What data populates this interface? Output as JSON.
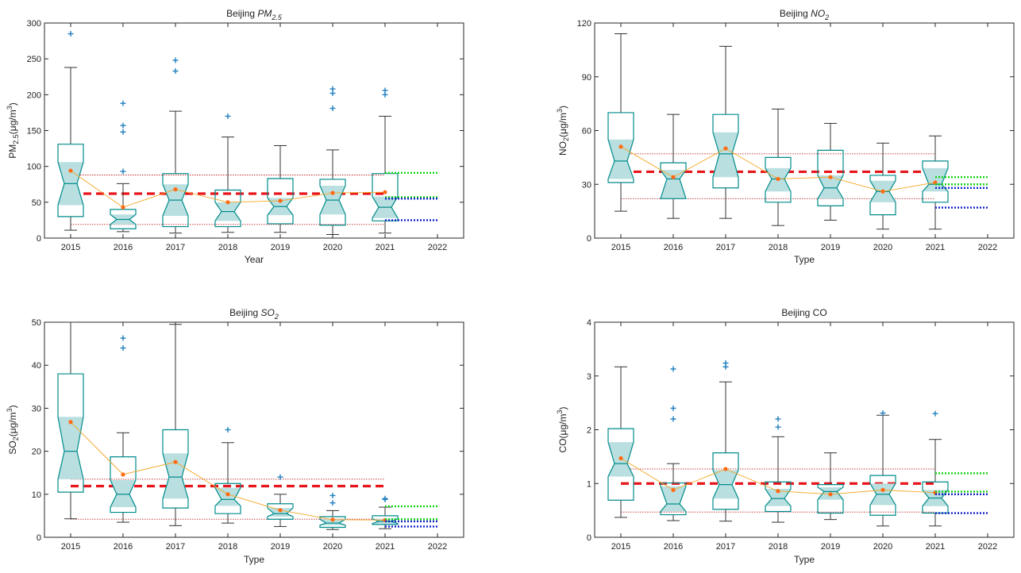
{
  "chart_data": [
    {
      "type": "box",
      "title_main": "Beijing ",
      "title_sub": "PM",
      "title_subscript": "2.5",
      "title_italic": true,
      "ylabel_main": "PM",
      "ylabel_sub": "2.5",
      "ylabel_unit": "(μg/m",
      "ylabel_sup": "3",
      "ylabel_close": ")",
      "xlabel": "Year",
      "ylim": [
        0,
        300
      ],
      "yticks": [
        0,
        50,
        100,
        150,
        200,
        250,
        300
      ],
      "yticklabels": [
        "0",
        "50",
        "100",
        "150",
        "200",
        "250",
        "300"
      ],
      "xlim": [
        2014.5,
        2022.5
      ],
      "xticks": [
        2015,
        2016,
        2017,
        2018,
        2019,
        2020,
        2021,
        2022
      ],
      "xticklabels": [
        "2015",
        "2016",
        "2017",
        "2018",
        "2019",
        "2020",
        "2021",
        "2022"
      ],
      "boxes": [
        {
          "year": 2015,
          "whisker_low": 11,
          "q1": 30,
          "median": 76,
          "q3": 131,
          "whisker_high": 238,
          "notch_low": 46,
          "notch_high": 106,
          "mean": 94,
          "outliers": [
            285
          ]
        },
        {
          "year": 2016,
          "whisker_low": 9,
          "q1": 13,
          "median": 26,
          "q3": 40,
          "whisker_high": 76,
          "notch_low": 19,
          "notch_high": 33,
          "mean": 43,
          "outliers": [
            93,
            148,
            157,
            188
          ]
        },
        {
          "year": 2017,
          "whisker_low": 7,
          "q1": 16,
          "median": 53,
          "q3": 90,
          "whisker_high": 177,
          "notch_low": 31,
          "notch_high": 75,
          "mean": 68,
          "outliers": [
            233,
            248
          ]
        },
        {
          "year": 2018,
          "whisker_low": 8,
          "q1": 16,
          "median": 37,
          "q3": 67,
          "whisker_high": 141,
          "notch_low": 24,
          "notch_high": 50,
          "mean": 50,
          "outliers": [
            170
          ]
        },
        {
          "year": 2019,
          "whisker_low": 8,
          "q1": 20,
          "median": 44,
          "q3": 83,
          "whisker_high": 129,
          "notch_low": 32,
          "notch_high": 56,
          "mean": 52,
          "outliers": []
        },
        {
          "year": 2020,
          "whisker_low": 5,
          "q1": 18,
          "median": 53,
          "q3": 82,
          "whisker_high": 123,
          "notch_low": 33,
          "notch_high": 73,
          "mean": 63,
          "outliers": [
            181,
            202,
            208
          ]
        },
        {
          "year": 2021,
          "whisker_low": 7,
          "q1": 24,
          "median": 43,
          "q3": 90,
          "whisker_high": 170,
          "notch_low": 28,
          "notch_high": 58,
          "mean": 64,
          "outliers": [
            200,
            206
          ]
        }
      ],
      "hlines": [
        {
          "name": "overall-mean",
          "y": 62,
          "x_from": 2015.0,
          "x_to": 2021.0,
          "color": "#e8141b",
          "style": "dash-thick"
        },
        {
          "name": "upper-band",
          "y": 88,
          "x_from": 2015.0,
          "x_to": 2021.0,
          "color": "#c0282b",
          "style": "dot-thin"
        },
        {
          "name": "lower-band",
          "y": 19,
          "x_from": 2015.0,
          "x_to": 2021.0,
          "color": "#c0282b",
          "style": "dot-thin"
        }
      ],
      "projections": [
        {
          "name": "green-upper",
          "y": 91,
          "color": "#18d418"
        },
        {
          "name": "green-lower",
          "y": 57,
          "color": "#18d418"
        },
        {
          "name": "blue-upper",
          "y": 55,
          "color": "#1220c8"
        },
        {
          "name": "blue-lower",
          "y": 25,
          "color": "#1220c8"
        }
      ]
    },
    {
      "type": "box",
      "title_main": "Beijing ",
      "title_sub": "NO",
      "title_subscript": "2",
      "title_italic": true,
      "ylabel_main": "NO",
      "ylabel_sub": "2",
      "ylabel_unit": "(μg/m",
      "ylabel_sup": "3",
      "ylabel_close": ")",
      "xlabel": "Type",
      "ylim": [
        0,
        120
      ],
      "yticks": [
        0,
        30,
        60,
        90,
        120
      ],
      "yticklabels": [
        "0",
        "30",
        "60",
        "90",
        "120"
      ],
      "xlim": [
        2014.5,
        2022.5
      ],
      "xticks": [
        2015,
        2016,
        2017,
        2018,
        2019,
        2020,
        2021,
        2022
      ],
      "xticklabels": [
        "2015",
        "2016",
        "2017",
        "2018",
        "2019",
        "2020",
        "2021",
        "2022"
      ],
      "boxes": [
        {
          "year": 2015,
          "whisker_low": 15,
          "q1": 31,
          "median": 43,
          "q3": 70,
          "whisker_high": 114,
          "notch_low": 33,
          "notch_high": 55,
          "mean": 51,
          "outliers": []
        },
        {
          "year": 2016,
          "whisker_low": 11,
          "q1": 22,
          "median": 33,
          "q3": 42,
          "whisker_high": 69,
          "notch_low": 22,
          "notch_high": 38,
          "mean": 34,
          "outliers": []
        },
        {
          "year": 2017,
          "whisker_low": 11,
          "q1": 28,
          "median": 47,
          "q3": 69,
          "whisker_high": 107,
          "notch_low": 34,
          "notch_high": 59,
          "mean": 50,
          "outliers": []
        },
        {
          "year": 2018,
          "whisker_low": 7,
          "q1": 20,
          "median": 33,
          "q3": 45,
          "whisker_high": 72,
          "notch_low": 26,
          "notch_high": 39,
          "mean": 33,
          "outliers": []
        },
        {
          "year": 2019,
          "whisker_low": 10,
          "q1": 18,
          "median": 28,
          "q3": 49,
          "whisker_high": 64,
          "notch_low": 22,
          "notch_high": 35,
          "mean": 34,
          "outliers": []
        },
        {
          "year": 2020,
          "whisker_low": 5,
          "q1": 13,
          "median": 26,
          "q3": 35,
          "whisker_high": 53,
          "notch_low": 20,
          "notch_high": 32,
          "mean": 26,
          "outliers": []
        },
        {
          "year": 2021,
          "whisker_low": 5,
          "q1": 20,
          "median": 30,
          "q3": 43,
          "whisker_high": 57,
          "notch_low": 26,
          "notch_high": 39,
          "mean": 31,
          "outliers": []
        }
      ],
      "hlines": [
        {
          "name": "overall-mean",
          "y": 37,
          "x_from": 2015.0,
          "x_to": 2021.0,
          "color": "#e8141b",
          "style": "dash-thick"
        },
        {
          "name": "upper-band",
          "y": 47,
          "x_from": 2015.0,
          "x_to": 2021.0,
          "color": "#c0282b",
          "style": "dot-thin"
        },
        {
          "name": "lower-band",
          "y": 22,
          "x_from": 2015.0,
          "x_to": 2021.0,
          "color": "#c0282b",
          "style": "dot-thin"
        }
      ],
      "projections": [
        {
          "name": "green-upper",
          "y": 34,
          "color": "#18d418"
        },
        {
          "name": "green-lower",
          "y": 30,
          "color": "#18d418"
        },
        {
          "name": "blue-upper",
          "y": 28,
          "color": "#1220c8"
        },
        {
          "name": "blue-lower",
          "y": 17,
          "color": "#1220c8"
        }
      ]
    },
    {
      "type": "box",
      "title_main": "Beijing ",
      "title_sub": "SO",
      "title_subscript": "2",
      "title_italic": true,
      "ylabel_main": "SO",
      "ylabel_sub": "2",
      "ylabel_unit": "(μg/m",
      "ylabel_sup": "3",
      "ylabel_close": ")",
      "xlabel": "Type",
      "ylim": [
        0,
        50
      ],
      "yticks": [
        0,
        10,
        20,
        30,
        40,
        50
      ],
      "yticklabels": [
        "0",
        "10",
        "20",
        "30",
        "40",
        "50"
      ],
      "xlim": [
        2014.5,
        2022.5
      ],
      "xticks": [
        2015,
        2016,
        2017,
        2018,
        2019,
        2020,
        2021,
        2022
      ],
      "xticklabels": [
        "2015",
        "2016",
        "2017",
        "2018",
        "2019",
        "2020",
        "2021",
        "2022"
      ],
      "boxes": [
        {
          "year": 2015,
          "whisker_low": 4.3,
          "q1": 10.5,
          "median": 20,
          "q3": 38,
          "whisker_high": 50,
          "notch_low": 13.5,
          "notch_high": 28,
          "mean": 26.8,
          "outliers": []
        },
        {
          "year": 2016,
          "whisker_low": 3.5,
          "q1": 5.8,
          "median": 10,
          "q3": 18.7,
          "whisker_high": 24.3,
          "notch_low": 7,
          "notch_high": 13.3,
          "mean": 14.6,
          "outliers": [
            44,
            46.3
          ]
        },
        {
          "year": 2017,
          "whisker_low": 2.7,
          "q1": 6.8,
          "median": 14,
          "q3": 25,
          "whisker_high": 49.5,
          "notch_low": 9,
          "notch_high": 19.5,
          "mean": 17.5,
          "outliers": []
        },
        {
          "year": 2018,
          "whisker_low": 3.3,
          "q1": 5.5,
          "median": 8.8,
          "q3": 12.5,
          "whisker_high": 22,
          "notch_low": 7.3,
          "notch_high": 11.5,
          "mean": 10,
          "outliers": [
            25
          ]
        },
        {
          "year": 2019,
          "whisker_low": 2.5,
          "q1": 4.2,
          "median": 5.5,
          "q3": 7.8,
          "whisker_high": 10,
          "notch_low": 4.8,
          "notch_high": 6.8,
          "mean": 6.3,
          "outliers": [
            14
          ]
        },
        {
          "year": 2020,
          "whisker_low": 1.8,
          "q1": 2.3,
          "median": 3.3,
          "q3": 4.8,
          "whisker_high": 6.2,
          "notch_low": 2.8,
          "notch_high": 4.2,
          "mean": 4.1,
          "outliers": [
            8,
            9.7
          ]
        },
        {
          "year": 2021,
          "whisker_low": 2,
          "q1": 3,
          "median": 3.7,
          "q3": 5,
          "whisker_high": 7,
          "notch_low": 3.2,
          "notch_high": 4.3,
          "mean": 4,
          "outliers": [
            8.8,
            9
          ]
        }
      ],
      "hlines": [
        {
          "name": "overall-mean",
          "y": 11.9,
          "x_from": 2015.0,
          "x_to": 2021.0,
          "color": "#e8141b",
          "style": "dash-thick"
        },
        {
          "name": "upper-band",
          "y": 13.5,
          "x_from": 2015.0,
          "x_to": 2021.0,
          "color": "#c0282b",
          "style": "dot-thin"
        },
        {
          "name": "lower-band",
          "y": 4.2,
          "x_from": 2015.0,
          "x_to": 2021.0,
          "color": "#c0282b",
          "style": "dot-thin"
        }
      ],
      "projections": [
        {
          "name": "green-upper",
          "y": 7.2,
          "color": "#18d418"
        },
        {
          "name": "green-lower",
          "y": 4.2,
          "color": "#18d418"
        },
        {
          "name": "blue-upper",
          "y": 3.7,
          "color": "#1220c8"
        },
        {
          "name": "blue-lower",
          "y": 2.5,
          "color": "#1220c8"
        }
      ]
    },
    {
      "type": "box",
      "title_main": "Beijing CO",
      "title_sub": "",
      "title_subscript": "",
      "title_italic": false,
      "ylabel_main": "CO",
      "ylabel_sub": "",
      "ylabel_unit": "(μg/m",
      "ylabel_sup": "3",
      "ylabel_close": ")",
      "xlabel": "Type",
      "ylim": [
        0,
        4
      ],
      "yticks": [
        0,
        1,
        2,
        3,
        4
      ],
      "yticklabels": [
        "0",
        "1",
        "2",
        "3",
        "4"
      ],
      "xlim": [
        2014.5,
        2022.5
      ],
      "xticks": [
        2015,
        2016,
        2017,
        2018,
        2019,
        2020,
        2021,
        2022
      ],
      "xticklabels": [
        "2015",
        "2016",
        "2017",
        "2018",
        "2019",
        "2020",
        "2021",
        "2022"
      ],
      "boxes": [
        {
          "year": 2015,
          "whisker_low": 0.37,
          "q1": 0.69,
          "median": 1.37,
          "q3": 2.02,
          "whisker_high": 3.17,
          "notch_low": 1.13,
          "notch_high": 1.77,
          "mean": 1.47,
          "outliers": []
        },
        {
          "year": 2016,
          "whisker_low": 0.31,
          "q1": 0.42,
          "median": 0.62,
          "q3": 1.01,
          "whisker_high": 1.37,
          "notch_low": 0.48,
          "notch_high": 0.95,
          "mean": 0.88,
          "outliers": [
            2.2,
            2.4,
            3.13
          ]
        },
        {
          "year": 2017,
          "whisker_low": 0.3,
          "q1": 0.52,
          "median": 0.98,
          "q3": 1.57,
          "whisker_high": 2.89,
          "notch_low": 0.72,
          "notch_high": 1.25,
          "mean": 1.27,
          "outliers": [
            3.17,
            3.24
          ]
        },
        {
          "year": 2018,
          "whisker_low": 0.28,
          "q1": 0.48,
          "median": 0.72,
          "q3": 1.03,
          "whisker_high": 1.87,
          "notch_low": 0.58,
          "notch_high": 0.9,
          "mean": 0.86,
          "outliers": [
            2.05,
            2.2
          ]
        },
        {
          "year": 2019,
          "whisker_low": 0.33,
          "q1": 0.45,
          "median": 0.85,
          "q3": 0.98,
          "whisker_high": 1.57,
          "notch_low": 0.7,
          "notch_high": 0.93,
          "mean": 0.8,
          "outliers": []
        },
        {
          "year": 2020,
          "whisker_low": 0.21,
          "q1": 0.41,
          "median": 0.8,
          "q3": 1.15,
          "whisker_high": 2.27,
          "notch_low": 0.6,
          "notch_high": 1.0,
          "mean": 0.88,
          "outliers": [
            2.31
          ]
        },
        {
          "year": 2021,
          "whisker_low": 0.21,
          "q1": 0.45,
          "median": 0.73,
          "q3": 1.03,
          "whisker_high": 1.82,
          "notch_low": 0.58,
          "notch_high": 0.88,
          "mean": 0.83,
          "outliers": [
            2.3
          ]
        }
      ],
      "hlines": [
        {
          "name": "overall-mean",
          "y": 1.0,
          "x_from": 2015.0,
          "x_to": 2021.0,
          "color": "#e8141b",
          "style": "dash-thick"
        },
        {
          "name": "upper-band",
          "y": 1.27,
          "x_from": 2015.0,
          "x_to": 2021.0,
          "color": "#c0282b",
          "style": "dot-thin"
        },
        {
          "name": "lower-band",
          "y": 0.47,
          "x_from": 2015.0,
          "x_to": 2021.0,
          "color": "#c0282b",
          "style": "dot-thin"
        }
      ],
      "projections": [
        {
          "name": "green-upper",
          "y": 1.19,
          "color": "#18d418"
        },
        {
          "name": "green-lower",
          "y": 0.85,
          "color": "#18d418"
        },
        {
          "name": "blue-upper",
          "y": 0.8,
          "color": "#1220c8"
        },
        {
          "name": "blue-lower",
          "y": 0.45,
          "color": "#1220c8"
        }
      ]
    }
  ],
  "colors": {
    "box_edge": "#008b8b",
    "notch_fill": "#b9dfe0",
    "whisker": "#333333",
    "outlier": "#1f7fbf",
    "mean_marker": "#ff6a13",
    "mean_line": "#f5a623"
  }
}
